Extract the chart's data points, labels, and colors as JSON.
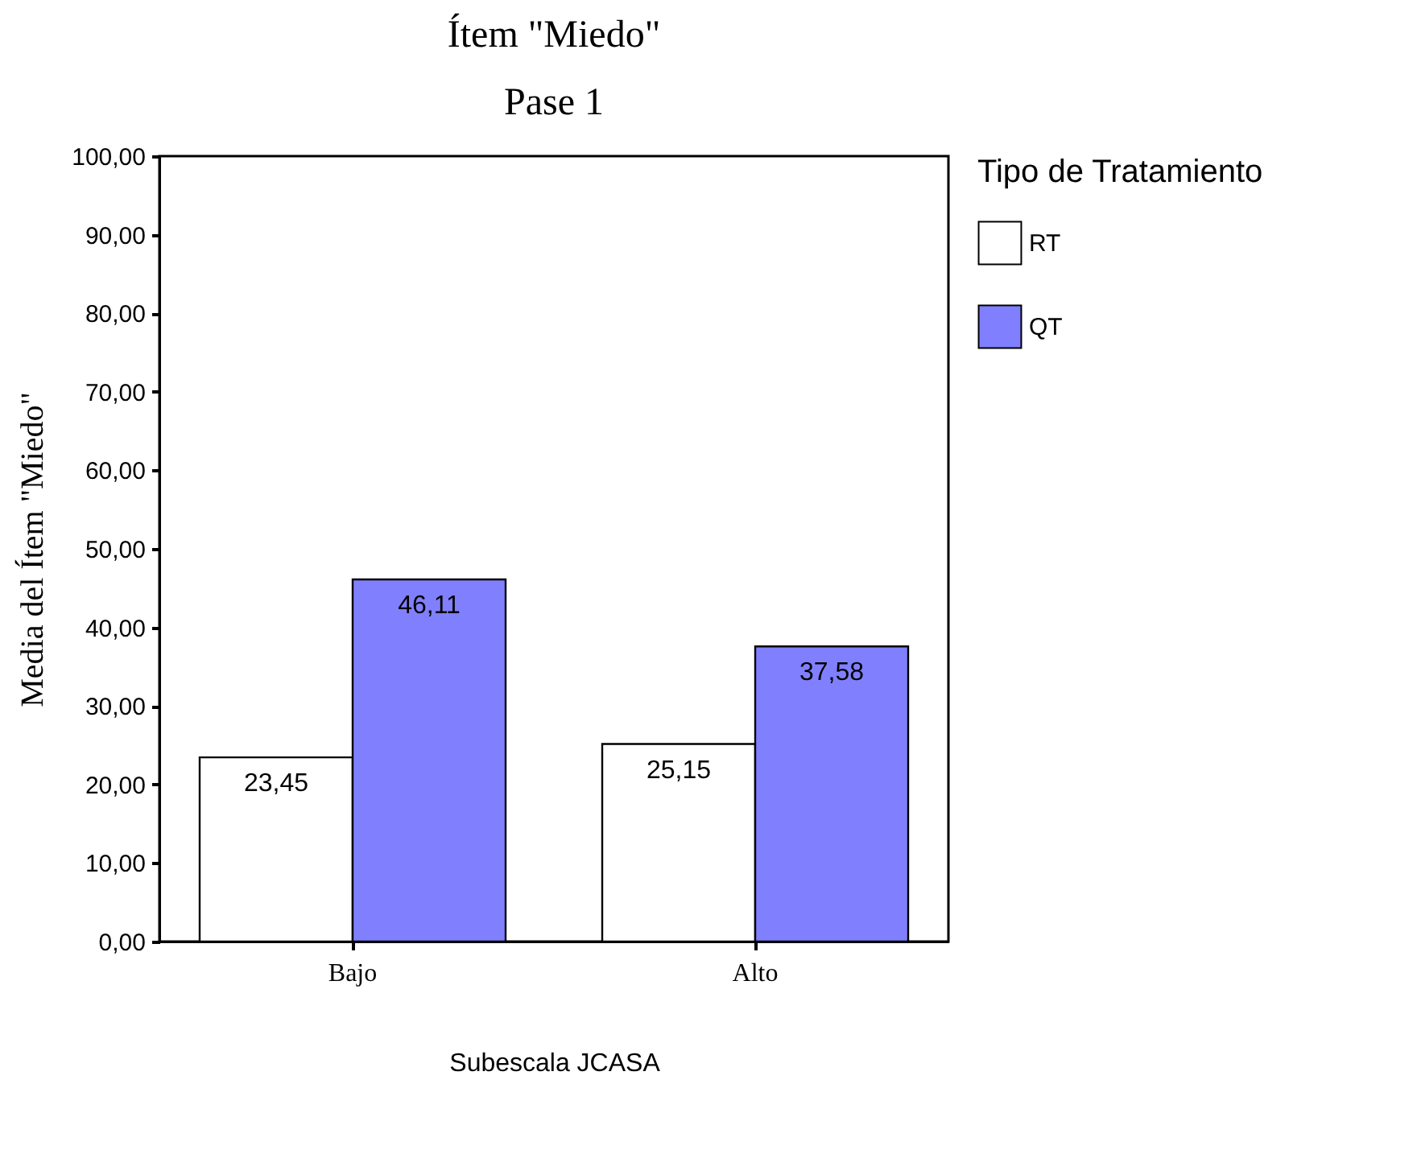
{
  "chart_data": {
    "type": "bar",
    "title": "Ítem \"Miedo\"",
    "subtitle": "Pase 1",
    "xlabel": "Subescala JCASA",
    "ylabel": "Media del Ítem \"Miedo\"",
    "legend_title": "Tipo de Tratamiento",
    "categories": [
      "Bajo",
      "Alto"
    ],
    "series": [
      {
        "name": "RT",
        "color": "#ffffff",
        "values": [
          23.45,
          25.15
        ],
        "value_labels": [
          "23,45",
          "25,15"
        ]
      },
      {
        "name": "QT",
        "color": "#8080ff",
        "values": [
          46.11,
          37.58
        ],
        "value_labels": [
          "46,11",
          "37,58"
        ]
      }
    ],
    "ylim": [
      0,
      100
    ],
    "yticks": [
      {
        "value": 0,
        "label": "0,00"
      },
      {
        "value": 10,
        "label": "10,00"
      },
      {
        "value": 20,
        "label": "20,00"
      },
      {
        "value": 30,
        "label": "30,00"
      },
      {
        "value": 40,
        "label": "40,00"
      },
      {
        "value": 50,
        "label": "50,00"
      },
      {
        "value": 60,
        "label": "60,00"
      },
      {
        "value": 70,
        "label": "70,00"
      },
      {
        "value": 80,
        "label": "80,00"
      },
      {
        "value": 90,
        "label": "90,00"
      },
      {
        "value": 100,
        "label": "100,00"
      }
    ],
    "grid": false,
    "legend": "right"
  }
}
